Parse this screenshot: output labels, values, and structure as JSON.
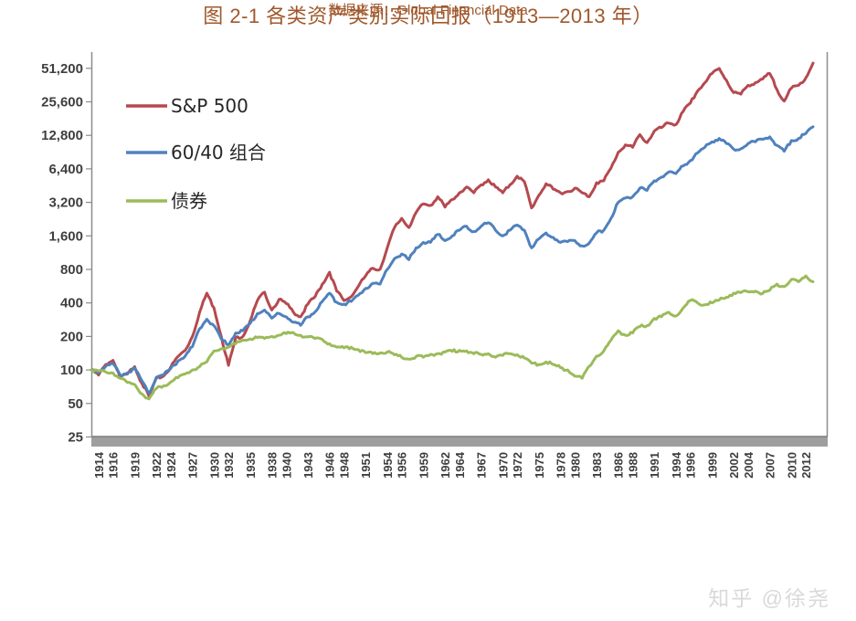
{
  "page": {
    "title_caption": "图 2-1 各类资产类别实际回报（1913—2013 年）",
    "source_caption": "数据来源：Global Financial Data",
    "watermark": "知乎 @徐尧",
    "caption_color": "#a0582c",
    "background_color": "#ffffff"
  },
  "chart_data": {
    "type": "line",
    "title": "图 2-1 各类资产类别实际回报（1913—2013 年）",
    "source": "数据来源：Global Financial Data",
    "y_scale": "log2",
    "grid": false,
    "legend_position": "top-left",
    "x_range": [
      1913,
      2013
    ],
    "x_step": 1,
    "y_ticks": [
      25,
      50,
      100,
      200,
      400,
      800,
      1600,
      3200,
      6400,
      12800,
      25600,
      51200
    ],
    "y_tick_labels": [
      "25",
      "50",
      "100",
      "200",
      "400",
      "800",
      "1,600",
      "3,200",
      "6,400",
      "12,800",
      "25,600",
      "51,200"
    ],
    "x_tick_labels": [
      "1914",
      "1916",
      "1919",
      "1922",
      "1924",
      "1927",
      "1930",
      "1932",
      "1935",
      "1938",
      "1940",
      "1943",
      "1946",
      "1948",
      "1951",
      "1954",
      "1956",
      "1959",
      "1962",
      "1964",
      "1967",
      "1970",
      "1972",
      "1975",
      "1978",
      "1980",
      "1983",
      "1986",
      "1988",
      "1991",
      "1994",
      "1996",
      "1999",
      "2002",
      "2004",
      "2007",
      "2010",
      "2012"
    ],
    "series": [
      {
        "name": "S&P 500",
        "color": "#b5494f",
        "values": [
          100,
          90,
          112,
          122,
          86,
          92,
          107,
          76,
          58,
          84,
          88,
          106,
          132,
          150,
          200,
          330,
          490,
          360,
          200,
          110,
          195,
          200,
          275,
          420,
          500,
          345,
          430,
          395,
          330,
          300,
          390,
          455,
          590,
          755,
          510,
          420,
          455,
          565,
          700,
          820,
          800,
          1250,
          1900,
          2300,
          1900,
          2600,
          3100,
          3000,
          3600,
          2900,
          3400,
          3900,
          4400,
          3900,
          4600,
          5100,
          4400,
          3900,
          4600,
          5500,
          4900,
          2850,
          3700,
          4700,
          4200,
          3900,
          4000,
          4300,
          3900,
          3600,
          4800,
          5000,
          6500,
          9000,
          10500,
          10000,
          13000,
          11000,
          14000,
          15000,
          16500,
          16000,
          21000,
          25000,
          32000,
          38000,
          46000,
          51000,
          40000,
          31000,
          30000,
          36000,
          38000,
          41000,
          46000,
          33000,
          26000,
          34000,
          36000,
          42000,
          57000
        ]
      },
      {
        "name": "60/40 组合",
        "color": "#4f81bd",
        "values": [
          100,
          95,
          108,
          114,
          90,
          94,
          104,
          80,
          62,
          86,
          90,
          103,
          120,
          133,
          162,
          235,
          285,
          250,
          190,
          168,
          215,
          225,
          262,
          320,
          345,
          292,
          322,
          300,
          268,
          252,
          300,
          332,
          412,
          490,
          405,
          390,
          412,
          470,
          540,
          600,
          590,
          800,
          1000,
          1100,
          980,
          1250,
          1400,
          1400,
          1650,
          1450,
          1600,
          1800,
          1950,
          1750,
          1950,
          2100,
          1800,
          1600,
          1800,
          2000,
          1800,
          1250,
          1500,
          1700,
          1550,
          1400,
          1420,
          1450,
          1300,
          1380,
          1700,
          1800,
          2300,
          3200,
          3500,
          3600,
          4300,
          4100,
          5000,
          5400,
          6000,
          5800,
          6800,
          7600,
          8900,
          10000,
          11200,
          12000,
          10800,
          9600,
          9700,
          10800,
          11200,
          11800,
          12400,
          10400,
          9200,
          11500,
          12000,
          13300,
          15300
        ]
      },
      {
        "name": "债券",
        "color": "#9bbb59",
        "values": [
          100,
          98,
          96,
          94,
          84,
          77,
          74,
          61,
          55,
          68,
          72,
          78,
          85,
          92,
          100,
          107,
          118,
          148,
          155,
          160,
          172,
          185,
          190,
          195,
          192,
          200,
          205,
          212,
          216,
          205,
          198,
          192,
          188,
          172,
          160,
          158,
          160,
          152,
          143,
          140,
          142,
          145,
          137,
          130,
          125,
          132,
          130,
          138,
          140,
          145,
          147,
          150,
          148,
          140,
          138,
          140,
          130,
          135,
          140,
          137,
          128,
          115,
          112,
          118,
          112,
          105,
          100,
          88,
          84,
          108,
          133,
          148,
          185,
          225,
          205,
          215,
          245,
          250,
          290,
          300,
          330,
          305,
          360,
          420,
          400,
          385,
          400,
          425,
          450,
          490,
          495,
          505,
          510,
          485,
          520,
          590,
          560,
          650,
          620,
          700,
          620
        ]
      }
    ]
  }
}
